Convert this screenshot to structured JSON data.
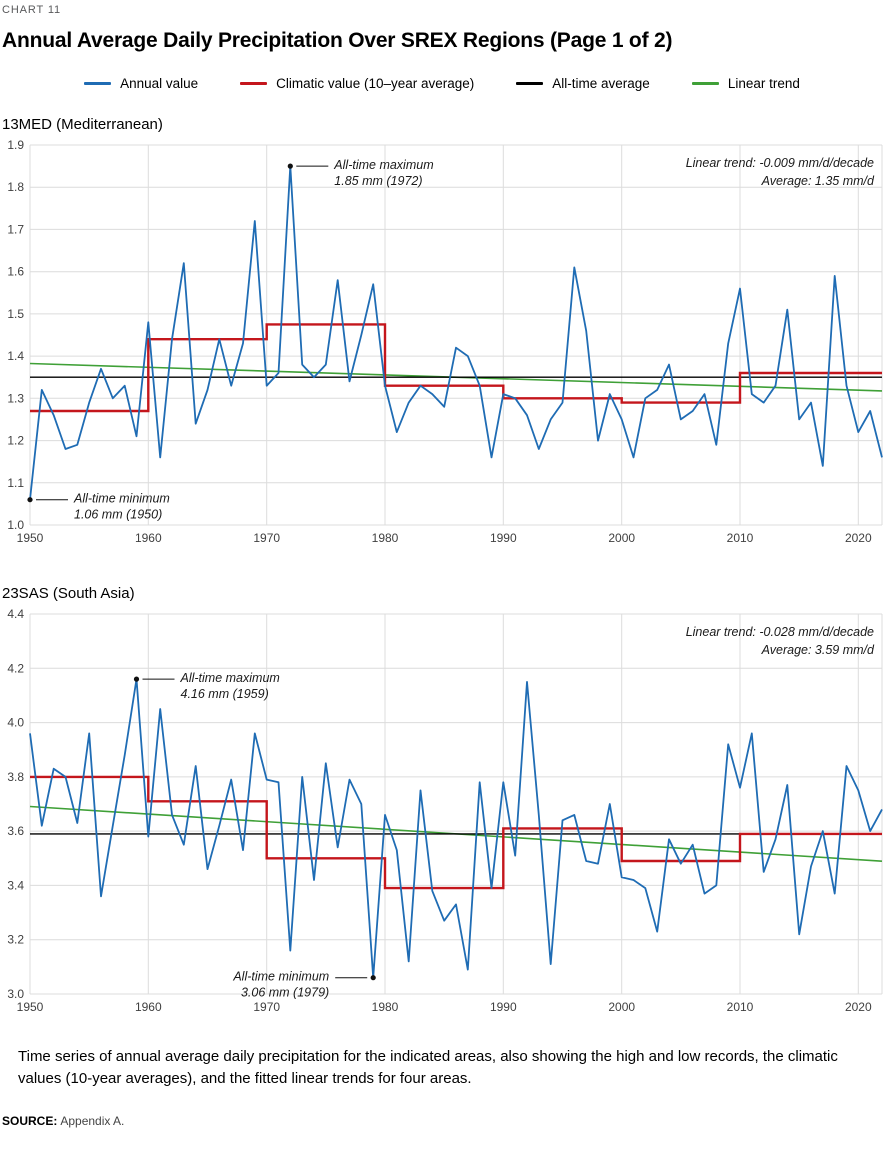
{
  "page": {
    "kicker": "CHART 11",
    "title": "Annual Average Daily Precipitation Over SREX Regions (Page 1 of 2)",
    "caption": "Time series of annual average daily precipitation for the indicated areas, also showing the high and low records, the climatic values (10-year averages), and the fitted linear trends for four areas.",
    "source_label": "SOURCE:",
    "source_text": "Appendix A."
  },
  "colors": {
    "annual": "#1f6cb4",
    "climatic": "#c4161c",
    "average": "#000000",
    "trend": "#3fa037",
    "grid": "#dcdcdc",
    "tick_text": "#404040"
  },
  "legend": {
    "items": [
      {
        "key": "annual-value",
        "label": "Annual value",
        "color": "#1f6cb4"
      },
      {
        "key": "climatic-value",
        "label": "Climatic value (10–year average)",
        "color": "#c4161c"
      },
      {
        "key": "all-time-average",
        "label": "All-time average",
        "color": "#000000"
      },
      {
        "key": "linear-trend",
        "label": "Linear trend",
        "color": "#3fa037"
      }
    ]
  },
  "chart_data": [
    {
      "type": "line",
      "region_label": "13MED (Mediterranean)",
      "xlabel": "",
      "ylabel": "",
      "xlim": [
        1950,
        2022
      ],
      "ylim": [
        1.0,
        1.9
      ],
      "ytick_step": 0.1,
      "xticks": [
        1950,
        1960,
        1970,
        1980,
        1990,
        2000,
        2010,
        2020
      ],
      "x_start_year": 1950,
      "all_time_average": 1.35,
      "trend_per_decade": -0.009,
      "trend_label_lines": [
        "Linear trend: -0.009 mm/d/decade",
        "Average: 1.35 mm/d"
      ],
      "annual_values": [
        1.06,
        1.32,
        1.26,
        1.18,
        1.19,
        1.29,
        1.37,
        1.3,
        1.33,
        1.21,
        1.48,
        1.16,
        1.44,
        1.62,
        1.24,
        1.32,
        1.44,
        1.33,
        1.43,
        1.72,
        1.33,
        1.36,
        1.85,
        1.38,
        1.35,
        1.38,
        1.58,
        1.34,
        1.45,
        1.57,
        1.33,
        1.22,
        1.29,
        1.33,
        1.31,
        1.28,
        1.42,
        1.4,
        1.33,
        1.16,
        1.31,
        1.3,
        1.26,
        1.18,
        1.25,
        1.29,
        1.61,
        1.46,
        1.2,
        1.31,
        1.25,
        1.16,
        1.3,
        1.32,
        1.38,
        1.25,
        1.27,
        1.31,
        1.19,
        1.43,
        1.56,
        1.31,
        1.29,
        1.33,
        1.51,
        1.25,
        1.29,
        1.14,
        1.59,
        1.33,
        1.22,
        1.27,
        1.16
      ],
      "climatic_steps": [
        {
          "from": 1950,
          "to": 1960,
          "value": 1.27
        },
        {
          "from": 1960,
          "to": 1970,
          "value": 1.44
        },
        {
          "from": 1970,
          "to": 1980,
          "value": 1.475
        },
        {
          "from": 1980,
          "to": 1990,
          "value": 1.33
        },
        {
          "from": 1990,
          "to": 2000,
          "value": 1.3
        },
        {
          "from": 2000,
          "to": 2010,
          "value": 1.29
        },
        {
          "from": 2010,
          "to": 2020,
          "value": 1.36
        },
        {
          "from": 2020,
          "to": 2022,
          "value": 1.36
        }
      ],
      "annotations": [
        {
          "name": "all-time-maximum",
          "year": 1972,
          "value": 1.85,
          "side": "right",
          "lines": [
            "All-time maximum",
            "1.85 mm (1972)"
          ]
        },
        {
          "name": "all-time-minimum",
          "year": 1950,
          "value": 1.06,
          "side": "right",
          "lines": [
            "All-time minimum",
            "1.06 mm (1950)"
          ]
        }
      ]
    },
    {
      "type": "line",
      "region_label": "23SAS (South Asia)",
      "xlabel": "",
      "ylabel": "",
      "xlim": [
        1950,
        2022
      ],
      "ylim": [
        3.0,
        4.4
      ],
      "ytick_step": 0.2,
      "xticks": [
        1950,
        1960,
        1970,
        1980,
        1990,
        2000,
        2010,
        2020
      ],
      "x_start_year": 1950,
      "all_time_average": 3.59,
      "trend_per_decade": -0.028,
      "trend_label_lines": [
        "Linear trend: -0.028 mm/d/decade",
        "Average: 3.59 mm/d"
      ],
      "annual_values": [
        3.96,
        3.62,
        3.83,
        3.8,
        3.63,
        3.96,
        3.36,
        3.62,
        3.88,
        4.16,
        3.58,
        4.05,
        3.66,
        3.55,
        3.84,
        3.46,
        3.62,
        3.79,
        3.53,
        3.96,
        3.79,
        3.78,
        3.16,
        3.8,
        3.42,
        3.85,
        3.54,
        3.79,
        3.7,
        3.06,
        3.66,
        3.53,
        3.12,
        3.75,
        3.38,
        3.27,
        3.33,
        3.09,
        3.78,
        3.39,
        3.78,
        3.51,
        4.15,
        3.66,
        3.11,
        3.64,
        3.66,
        3.49,
        3.48,
        3.7,
        3.43,
        3.42,
        3.39,
        3.23,
        3.57,
        3.48,
        3.55,
        3.37,
        3.4,
        3.92,
        3.76,
        3.96,
        3.45,
        3.57,
        3.77,
        3.22,
        3.47,
        3.6,
        3.37,
        3.84,
        3.75,
        3.6,
        3.68
      ],
      "climatic_steps": [
        {
          "from": 1950,
          "to": 1960,
          "value": 3.8
        },
        {
          "from": 1960,
          "to": 1970,
          "value": 3.71
        },
        {
          "from": 1970,
          "to": 1980,
          "value": 3.5
        },
        {
          "from": 1980,
          "to": 1990,
          "value": 3.39
        },
        {
          "from": 1990,
          "to": 2000,
          "value": 3.61
        },
        {
          "from": 2000,
          "to": 2010,
          "value": 3.49
        },
        {
          "from": 2010,
          "to": 2020,
          "value": 3.59
        },
        {
          "from": 2020,
          "to": 2022,
          "value": 3.59
        }
      ],
      "annotations": [
        {
          "name": "all-time-maximum",
          "year": 1959,
          "value": 4.16,
          "side": "right",
          "lines": [
            "All-time maximum",
            "4.16 mm (1959)"
          ]
        },
        {
          "name": "all-time-minimum",
          "year": 1979,
          "value": 3.06,
          "side": "left",
          "lines": [
            "All-time minimum",
            "3.06 mm (1979)"
          ]
        }
      ]
    }
  ]
}
